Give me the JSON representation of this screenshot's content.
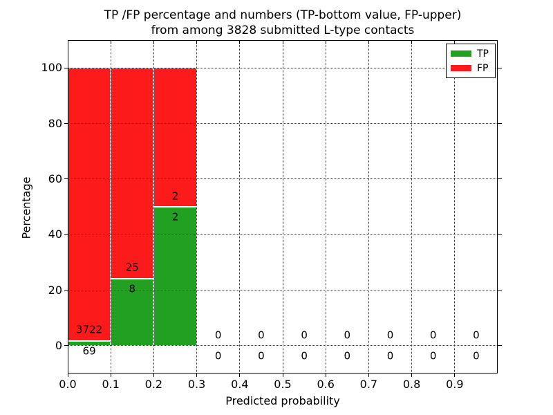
{
  "title": {
    "line1": "TP /FP percentage and numbers (TP-bottom value, FP-upper)",
    "line2": "from among 3828 submitted L-type contacts"
  },
  "legend": {
    "entries": [
      {
        "label": "TP",
        "color": "#22a022"
      },
      {
        "label": "FP",
        "color": "#fc1a1a"
      }
    ]
  },
  "chart_data": {
    "type": "bar",
    "stacked": true,
    "title": "TP /FP percentage and numbers (TP-bottom value, FP-upper) from among 3828 submitted L-type contacts",
    "xlabel": "Predicted probability",
    "ylabel": "Percentage",
    "xlim": [
      0.0,
      1.0
    ],
    "ylim": [
      -10,
      110
    ],
    "xtick_values": [
      0.0,
      0.1,
      0.2,
      0.3,
      0.4,
      0.5,
      0.6,
      0.7,
      0.8,
      0.9
    ],
    "xtick_labels": [
      "0.0",
      "0.1",
      "0.2",
      "0.3",
      "0.4",
      "0.5",
      "0.6",
      "0.7",
      "0.8",
      "0.9"
    ],
    "ytick_values": [
      0,
      20,
      40,
      60,
      80,
      100
    ],
    "ytick_labels": [
      "0",
      "20",
      "40",
      "60",
      "80",
      "100"
    ],
    "grid": "dotted",
    "legend_position": "upper-right",
    "series_colors": {
      "TP": "#22a022",
      "FP": "#fc1a1a"
    },
    "total_submitted": 3828,
    "bins": [
      {
        "x_start": 0.0,
        "x_end": 0.1,
        "tp_count": 69,
        "fp_count": 3722,
        "tp_pct": 1.8,
        "bar_total_pct": 100
      },
      {
        "x_start": 0.1,
        "x_end": 0.2,
        "tp_count": 8,
        "fp_count": 25,
        "tp_pct": 24.2,
        "bar_total_pct": 100
      },
      {
        "x_start": 0.2,
        "x_end": 0.3,
        "tp_count": 2,
        "fp_count": 2,
        "tp_pct": 50.0,
        "bar_total_pct": 100
      },
      {
        "x_start": 0.3,
        "x_end": 0.4,
        "tp_count": 0,
        "fp_count": 0,
        "tp_pct": 0,
        "bar_total_pct": 0
      },
      {
        "x_start": 0.4,
        "x_end": 0.5,
        "tp_count": 0,
        "fp_count": 0,
        "tp_pct": 0,
        "bar_total_pct": 0
      },
      {
        "x_start": 0.5,
        "x_end": 0.6,
        "tp_count": 0,
        "fp_count": 0,
        "tp_pct": 0,
        "bar_total_pct": 0
      },
      {
        "x_start": 0.6,
        "x_end": 0.7,
        "tp_count": 0,
        "fp_count": 0,
        "tp_pct": 0,
        "bar_total_pct": 0
      },
      {
        "x_start": 0.7,
        "x_end": 0.8,
        "tp_count": 0,
        "fp_count": 0,
        "tp_pct": 0,
        "bar_total_pct": 0
      },
      {
        "x_start": 0.8,
        "x_end": 0.9,
        "tp_count": 0,
        "fp_count": 0,
        "tp_pct": 0,
        "bar_total_pct": 0
      },
      {
        "x_start": 0.9,
        "x_end": 1.0,
        "tp_count": 0,
        "fp_count": 0,
        "tp_pct": 0,
        "bar_total_pct": 0
      }
    ]
  }
}
